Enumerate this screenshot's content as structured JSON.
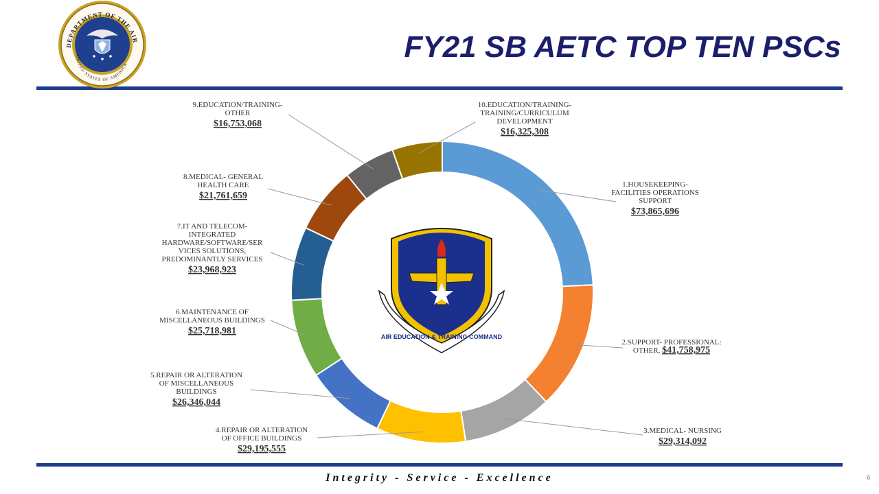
{
  "title": "FY21 SB AETC TOP TEN PSCs",
  "footer": "Integrity - Service - Excellence",
  "page_number": "6",
  "seal": {
    "name": "department-of-the-air-force-seal",
    "text_top": "DEPARTMENT OF THE AIR FORCE",
    "text_bottom": "UNITED STATES OF AMERICA",
    "year": "MCMXLVII"
  },
  "emblem": {
    "name": "air-education-and-training-command-shield",
    "text": "AIR EDUCATION & TRAINING COMMAND"
  },
  "colors": {
    "title": "#1b1f6b",
    "rule": "#1e3a8a"
  },
  "chart_data": {
    "type": "doughnut",
    "title": "",
    "series": [
      {
        "values": [
          {
            "label_lines": [
              "1.HOUSEKEEPING-",
              "FACILITIES OPERATIONS",
              "SUPPORT"
            ],
            "value": 73865696,
            "value_text": "$73,865,696",
            "color": "#5b9bd5"
          },
          {
            "label_lines": [
              "2.SUPPORT- PROFESSIONAL:",
              "OTHER,"
            ],
            "value": 41758975,
            "value_text": "$41,758,975",
            "color": "#f4812f"
          },
          {
            "label_lines": [
              "3.MEDICAL- NURSING"
            ],
            "value": 29314092,
            "value_text": "$29,314,092",
            "color": "#a5a5a5"
          },
          {
            "label_lines": [
              "4.REPAIR OR ALTERATION",
              "OF OFFICE BUILDINGS"
            ],
            "value": 29195555,
            "value_text": "$29,195,555",
            "color": "#ffc000"
          },
          {
            "label_lines": [
              "5.REPAIR OR ALTERATION",
              "OF MISCELLANEOUS",
              "BUILDINGS"
            ],
            "value": 26346044,
            "value_text": "$26,346,044",
            "color": "#4472c4"
          },
          {
            "label_lines": [
              "6.MAINTENANCE OF",
              "MISCELLANEOUS BUILDINGS"
            ],
            "value": 25718981,
            "value_text": "$25,718,981",
            "color": "#70ad47"
          },
          {
            "label_lines": [
              "7.IT AND TELECOM-",
              "INTEGRATED",
              "HARDWARE/SOFTWARE/SER",
              "VICES SOLUTIONS,",
              "PREDOMINANTLY SERVICES"
            ],
            "value": 23968923,
            "value_text": "$23,968,923",
            "color": "#255e91"
          },
          {
            "label_lines": [
              "8.MEDICAL- GENERAL",
              "HEALTH CARE"
            ],
            "value": 21761659,
            "value_text": "$21,761,659",
            "color": "#9e480e"
          },
          {
            "label_lines": [
              "9.EDUCATION/TRAINING-",
              "OTHER"
            ],
            "value": 16753068,
            "value_text": "$16,753,068",
            "color": "#636363"
          },
          {
            "label_lines": [
              "10.EDUCATION/TRAINING-",
              "TRAINING/CURRICULUM",
              "DEVELOPMENT"
            ],
            "value": 16325308,
            "value_text": "$16,325,308",
            "color": "#997300"
          }
        ]
      }
    ],
    "legend": "none",
    "data_labels": "outside with leader lines"
  }
}
